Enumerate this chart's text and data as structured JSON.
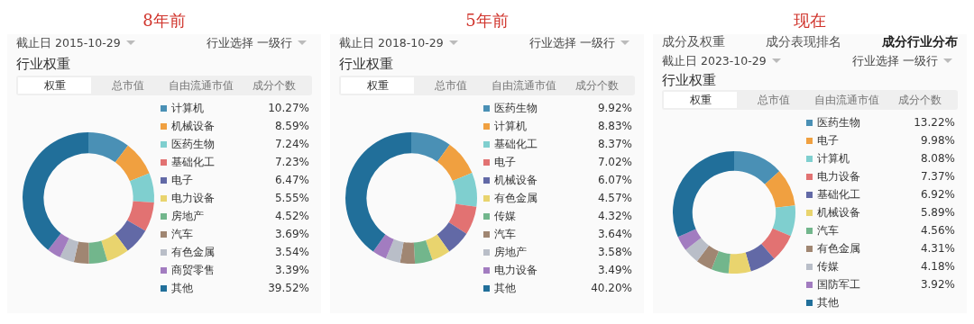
{
  "chart_data": [
    {
      "type": "donut",
      "title": "8年前",
      "subtitle": "行业权重",
      "annotations": [
        "截止日 2015-10-29",
        "行业选择 一级行",
        "权重",
        "总市值",
        "自由流通市值",
        "成分个数"
      ],
      "legend": "right",
      "categories": [
        "计算机",
        "机械设备",
        "医药生物",
        "基础化工",
        "电子",
        "电力设备",
        "房地产",
        "汽车",
        "有色金属",
        "商贸零售",
        "其他"
      ],
      "values": [
        10.27,
        8.59,
        7.24,
        7.23,
        6.47,
        5.55,
        4.52,
        3.69,
        3.54,
        3.39,
        39.52
      ],
      "value_labels": [
        "10.27%",
        "8.59%",
        "7.24%",
        "7.23%",
        "6.47%",
        "5.55%",
        "4.52%",
        "3.69%",
        "3.54%",
        "3.39%",
        "39.52%"
      ],
      "colors": [
        "#4a90b5",
        "#f0a040",
        "#7fcfcf",
        "#e27272",
        "#6269a6",
        "#e9d46e",
        "#72b68c",
        "#a08672",
        "#b9bec8",
        "#a27cc0",
        "#216f9a"
      ]
    },
    {
      "type": "donut",
      "title": "5年前",
      "subtitle": "行业权重",
      "annotations": [
        "截止日 2018-10-29",
        "行业选择 一级行",
        "权重",
        "总市值",
        "自由流通市值",
        "成分个数"
      ],
      "legend": "right",
      "categories": [
        "医药生物",
        "计算机",
        "基础化工",
        "电子",
        "机械设备",
        "有色金属",
        "传媒",
        "汽车",
        "房地产",
        "电力设备",
        "其他"
      ],
      "values": [
        9.92,
        8.83,
        8.37,
        7.02,
        6.07,
        4.57,
        4.32,
        3.64,
        3.58,
        3.49,
        40.2
      ],
      "value_labels": [
        "9.92%",
        "8.83%",
        "8.37%",
        "7.02%",
        "6.07%",
        "4.57%",
        "4.32%",
        "3.64%",
        "3.58%",
        "3.49%",
        "40.20%"
      ],
      "colors": [
        "#4a90b5",
        "#f0a040",
        "#7fcfcf",
        "#e27272",
        "#6269a6",
        "#e9d46e",
        "#72b68c",
        "#a08672",
        "#b9bec8",
        "#a27cc0",
        "#216f9a"
      ]
    },
    {
      "type": "donut",
      "title": "现在",
      "subtitle": "行业权重",
      "annotations": [
        "成分及权重",
        "成分表现排名",
        "成分行业分布",
        "截止日 2023-10-29",
        "行业选择 一级行",
        "权重",
        "总市值",
        "自由流通市值",
        "成分个数"
      ],
      "legend": "right",
      "categories": [
        "医药生物",
        "电子",
        "计算机",
        "电力设备",
        "基础化工",
        "机械设备",
        "汽车",
        "有色金属",
        "传媒",
        "国防军工",
        "其他"
      ],
      "values": [
        13.22,
        9.98,
        8.08,
        7.37,
        6.92,
        5.89,
        4.56,
        4.31,
        4.18,
        3.92,
        31.57
      ],
      "value_labels": [
        "13.22%",
        "9.98%",
        "8.08%",
        "7.37%",
        "6.92%",
        "5.89%",
        "4.56%",
        "4.31%",
        "4.18%",
        "3.92%",
        null
      ],
      "colors": [
        "#4a90b5",
        "#f0a040",
        "#7fcfcf",
        "#e27272",
        "#6269a6",
        "#e9d46e",
        "#72b68c",
        "#a08672",
        "#b9bec8",
        "#a27cc0",
        "#216f9a"
      ]
    }
  ]
}
